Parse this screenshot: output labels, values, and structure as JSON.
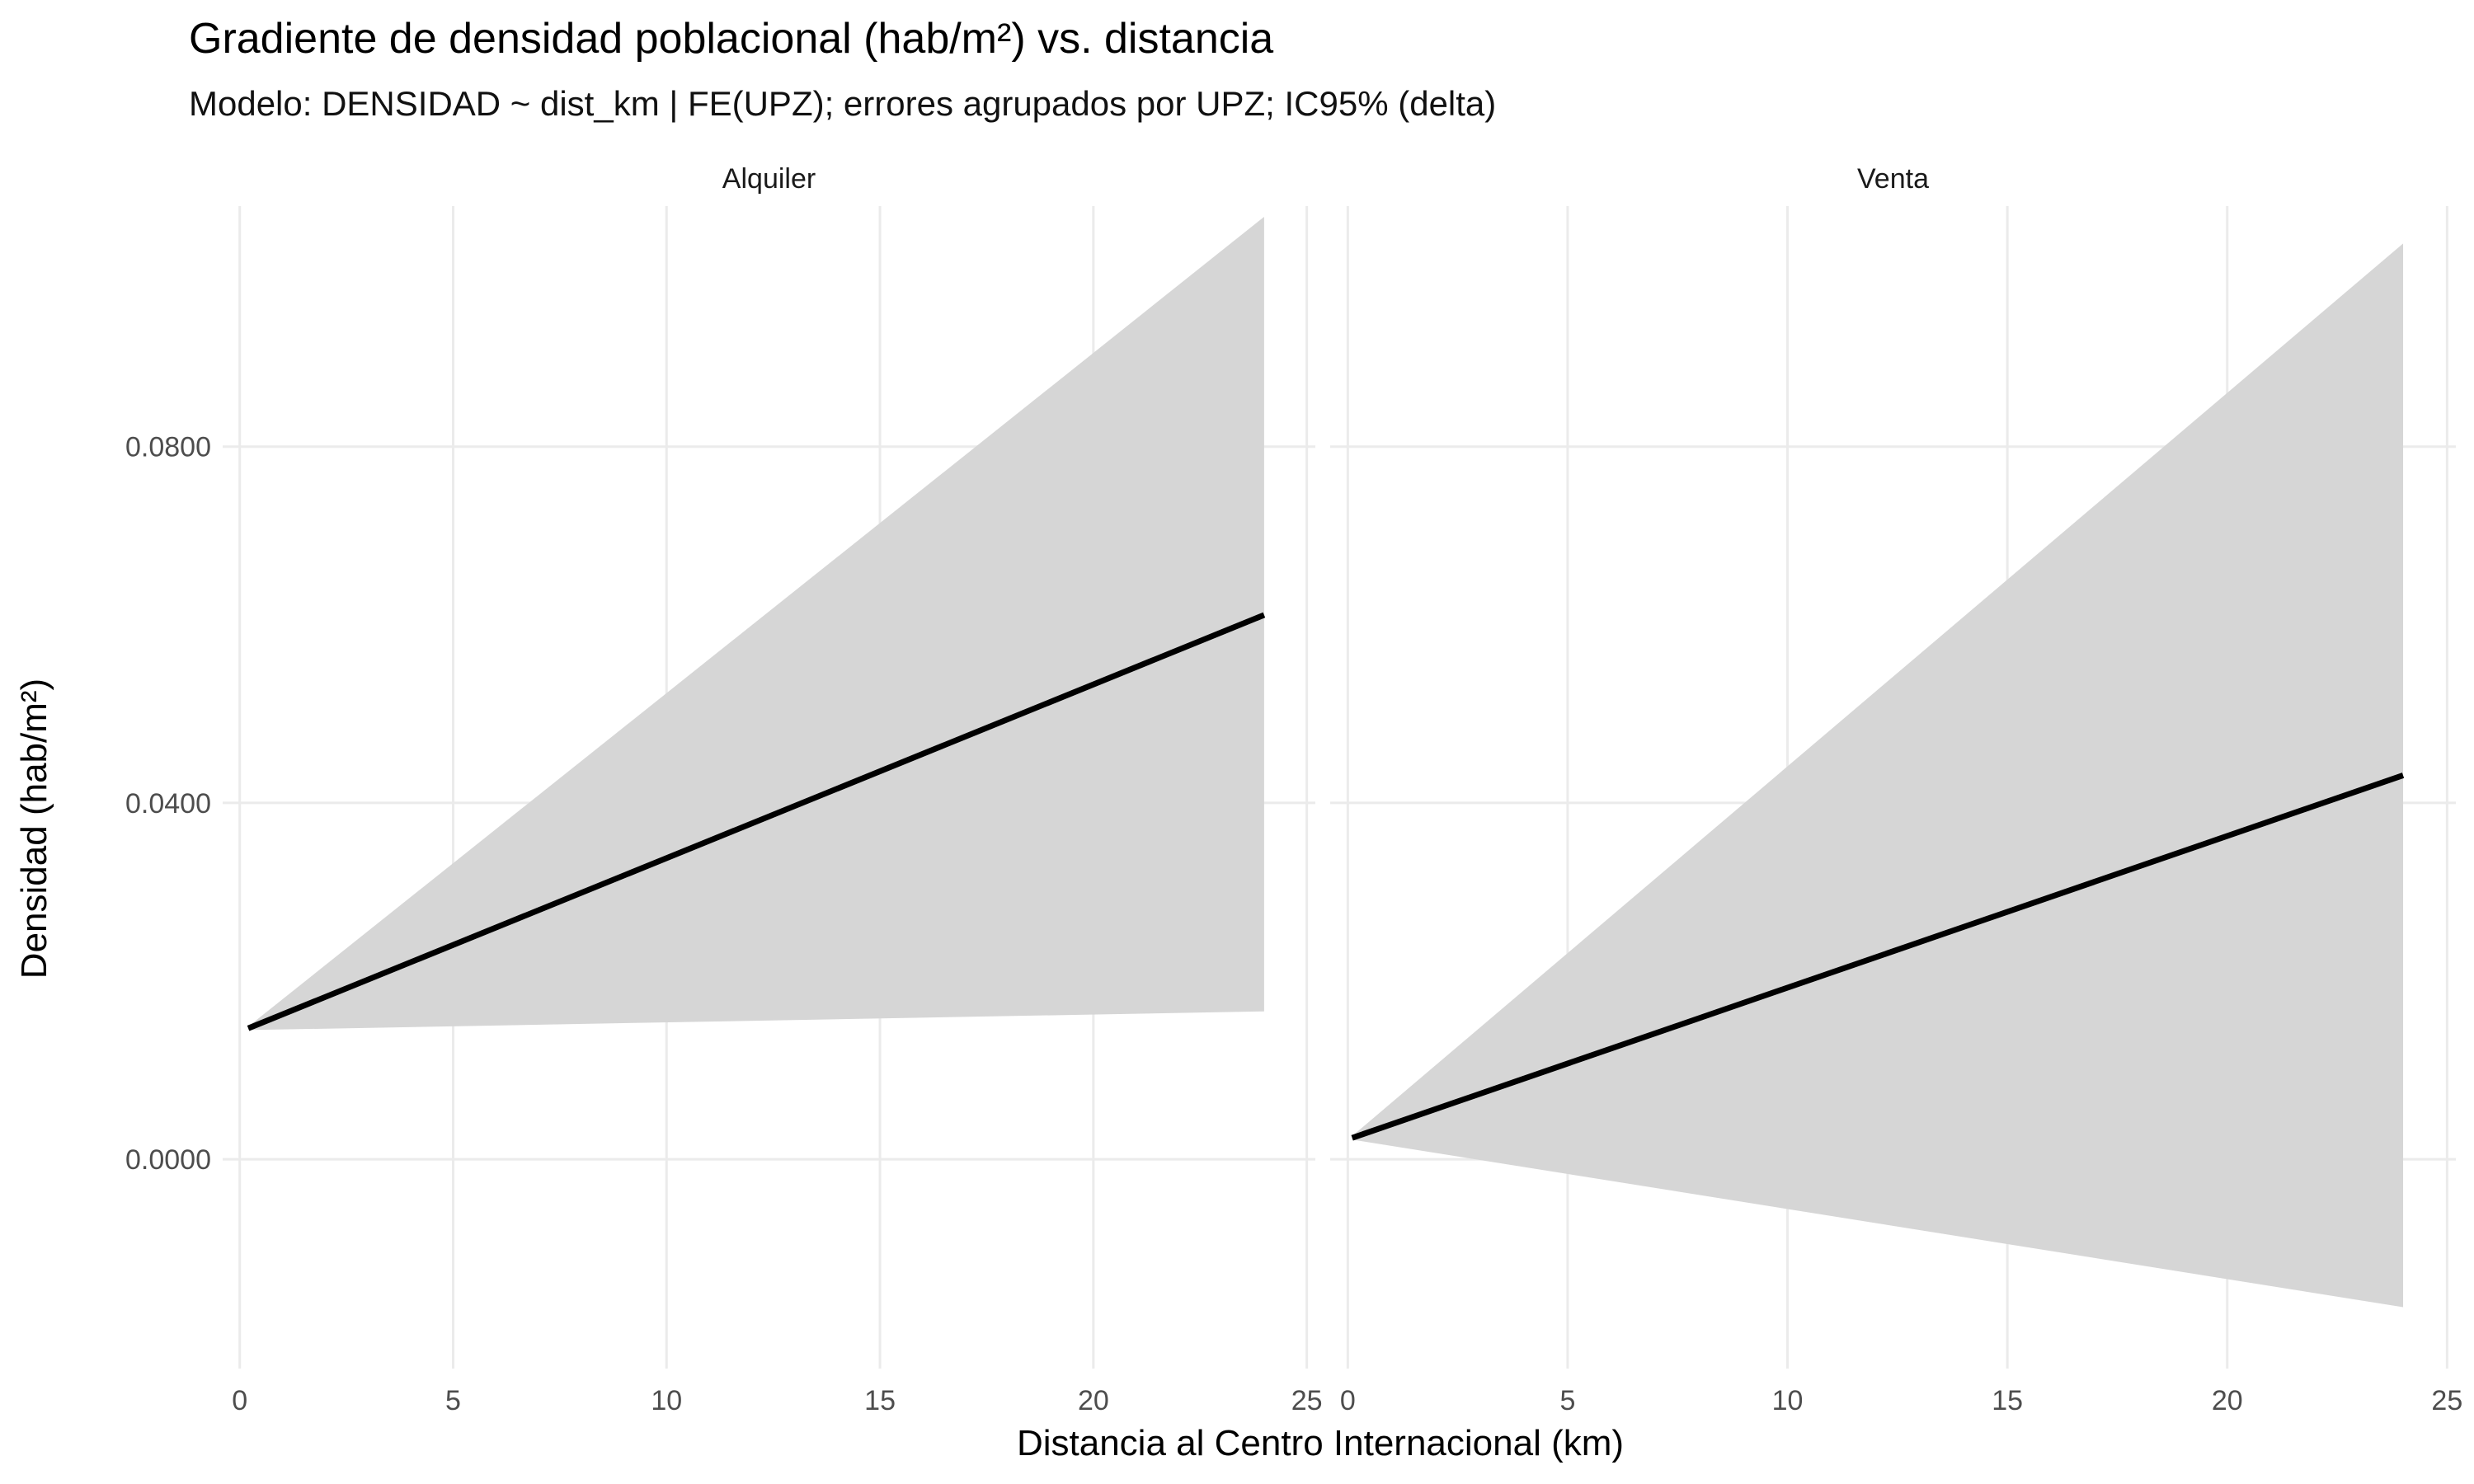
{
  "chart_data": {
    "type": "line",
    "title": "Gradiente de densidad poblacional (hab/m²) vs. distancia",
    "subtitle": "Modelo: DENSIDAD ~ dist_km | FE(UPZ); errores agrupados por UPZ; IC95% (delta)",
    "xlabel": "Distancia al Centro Internacional (km)",
    "ylabel": "Densidad (hab/m²)",
    "xlim": [
      -0.4,
      25.2
    ],
    "ylim": [
      -0.0235,
      0.107
    ],
    "x_ticks": [
      0,
      5,
      10,
      15,
      20,
      25
    ],
    "x_tick_labels": [
      "0",
      "5",
      "10",
      "15",
      "20",
      "25"
    ],
    "y_ticks": [
      0.0,
      0.04,
      0.08
    ],
    "y_tick_labels": [
      "0.0000",
      "0.0400",
      "0.0800"
    ],
    "grid": true,
    "legend": "none",
    "colors": {
      "line": "#000000",
      "ribbon": "#d6d6d6",
      "grid": "#ebebeb"
    },
    "facets": [
      {
        "name": "Alquiler",
        "x": [
          0.2,
          24.0
        ],
        "fit": [
          0.0147,
          0.0611
        ],
        "ci_low": [
          0.0145,
          0.0166
        ],
        "ci_high": [
          0.0149,
          0.1058
        ]
      },
      {
        "name": "Venta",
        "x": [
          0.1,
          24.0
        ],
        "fit": [
          0.0024,
          0.0431
        ],
        "ci_low": [
          0.0022,
          -0.0166
        ],
        "ci_high": [
          0.0026,
          0.1028
        ]
      }
    ]
  }
}
